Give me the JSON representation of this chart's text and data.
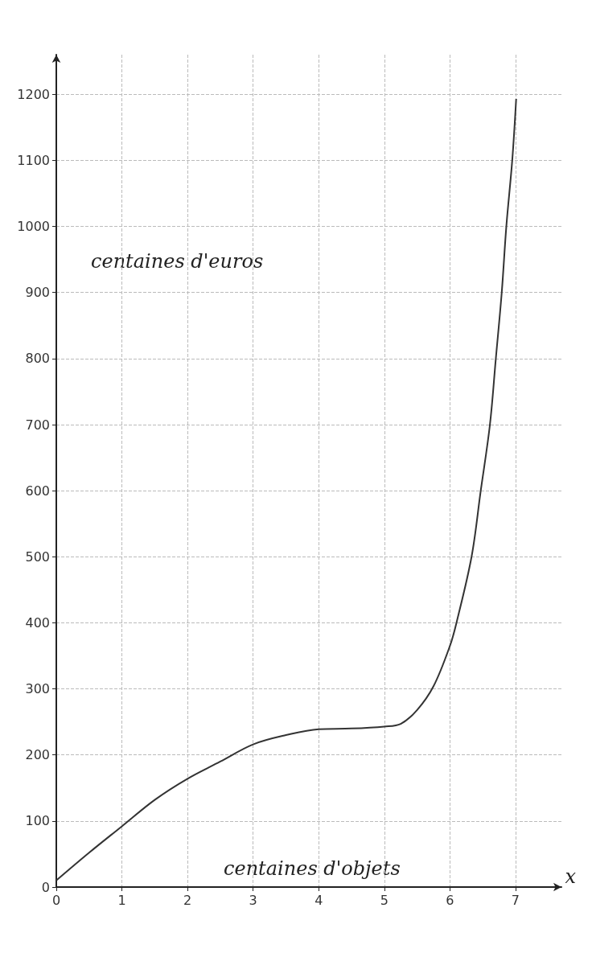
{
  "chart_data": {
    "type": "line",
    "xlabel": "centaines d'objets",
    "ylabel": "centaines d'euros",
    "annotations": [
      "x"
    ],
    "x": [
      0,
      0.5,
      1,
      1.5,
      2,
      2.5,
      3,
      3.5,
      4,
      4.5,
      5,
      5.25,
      5.5,
      5.75,
      6,
      6.1,
      6.33,
      6.47,
      6.61,
      6.7,
      6.79,
      6.86,
      6.95,
      7.01
    ],
    "series": [
      {
        "color": "#333333",
        "values": [
          10,
          52,
          92,
          132,
          164,
          190,
          216,
          230,
          239,
          240,
          243,
          247,
          268,
          304,
          365,
          400,
          500,
          600,
          700,
          800,
          900,
          1000,
          1100,
          1193
        ]
      }
    ],
    "xlim": [
      0,
      7.7
    ],
    "ylim": [
      0,
      1260
    ],
    "xticks": [
      0,
      1,
      2,
      3,
      4,
      5,
      6,
      7
    ],
    "yticks": [
      0,
      100,
      200,
      300,
      400,
      500,
      600,
      700,
      800,
      900,
      1000,
      1100,
      1200
    ],
    "grid": true,
    "marker": "none",
    "line_style": "solid"
  }
}
